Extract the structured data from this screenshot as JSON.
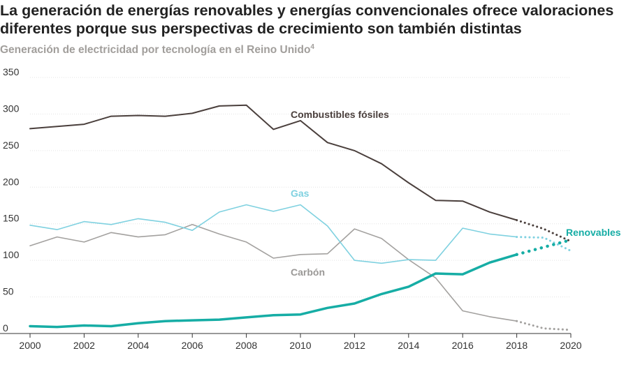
{
  "title_lines": [
    "La generación de energías renovables y energías convencionales ofrece valoraciones",
    "diferentes porque sus perspectivas de crecimiento son también distintas"
  ],
  "subtitle": "Generación de electricidad por tecnología en el Reino Unido",
  "subtitle_note": "4",
  "chart_data": {
    "type": "line",
    "title": "",
    "xlabel": "",
    "ylabel": "",
    "xlim": [
      2000,
      2020
    ],
    "ylim": [
      0,
      350
    ],
    "x_ticks": [
      2000,
      2002,
      2004,
      2006,
      2008,
      2010,
      2012,
      2014,
      2016,
      2018,
      2020
    ],
    "y_ticks": [
      0,
      50,
      100,
      150,
      200,
      250,
      300,
      350
    ],
    "grid": "horizontal",
    "legend": "inline labels",
    "projection_style": "dotted after 2018",
    "series": [
      {
        "name": "Combustibles fósiles",
        "color": "#4a3f3c",
        "x": [
          2000,
          2001,
          2002,
          2003,
          2004,
          2005,
          2006,
          2007,
          2008,
          2009,
          2010,
          2011,
          2012,
          2013,
          2014,
          2015,
          2016,
          2017,
          2018
        ],
        "values": [
          280,
          283,
          286,
          297,
          298,
          297,
          301,
          311,
          312,
          279,
          291,
          261,
          250,
          232,
          206,
          182,
          181,
          166,
          155
        ],
        "projection_x": [
          2018,
          2019,
          2020
        ],
        "projection_values": [
          155,
          143,
          126
        ]
      },
      {
        "name": "Gas",
        "color": "#7fd1e0",
        "x": [
          2000,
          2001,
          2002,
          2003,
          2004,
          2005,
          2006,
          2007,
          2008,
          2009,
          2010,
          2011,
          2012,
          2013,
          2014,
          2015,
          2016,
          2017,
          2018
        ],
        "values": [
          148,
          142,
          153,
          149,
          157,
          152,
          141,
          166,
          176,
          167,
          176,
          147,
          100,
          96,
          101,
          100,
          144,
          136,
          132
        ],
        "projection_x": [
          2018,
          2019,
          2020
        ],
        "projection_values": [
          132,
          131,
          113
        ]
      },
      {
        "name": "Carbón",
        "color": "#a3a19f",
        "x": [
          2000,
          2001,
          2002,
          2003,
          2004,
          2005,
          2006,
          2007,
          2008,
          2009,
          2010,
          2011,
          2012,
          2013,
          2014,
          2015,
          2016,
          2017,
          2018
        ],
        "values": [
          120,
          132,
          125,
          138,
          132,
          135,
          149,
          136,
          125,
          103,
          108,
          109,
          143,
          130,
          101,
          76,
          31,
          23,
          17
        ],
        "projection_x": [
          2018,
          2019,
          2020
        ],
        "projection_values": [
          17,
          7,
          5
        ]
      },
      {
        "name": "Renovables",
        "color": "#16ada5",
        "x": [
          2000,
          2001,
          2002,
          2003,
          2004,
          2005,
          2006,
          2007,
          2008,
          2009,
          2010,
          2011,
          2012,
          2013,
          2014,
          2015,
          2016,
          2017,
          2018
        ],
        "values": [
          10,
          9,
          11,
          10,
          14,
          17,
          18,
          19,
          22,
          25,
          26,
          35,
          41,
          54,
          64,
          82,
          81,
          97,
          108
        ],
        "projection_x": [
          2018,
          2019,
          2020
        ],
        "projection_values": [
          108,
          118,
          128
        ]
      }
    ]
  }
}
